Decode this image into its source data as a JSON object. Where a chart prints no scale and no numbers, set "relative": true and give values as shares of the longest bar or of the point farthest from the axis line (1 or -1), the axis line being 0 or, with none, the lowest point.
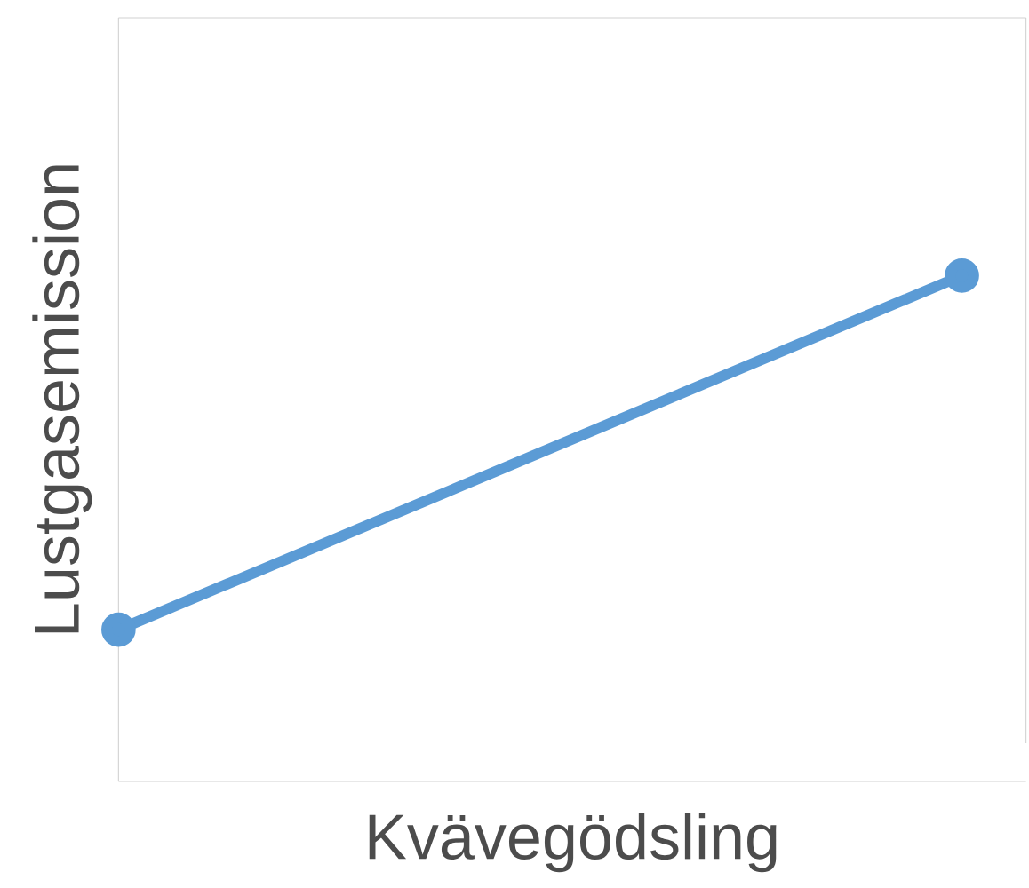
{
  "chart_data": {
    "type": "line",
    "xlabel": "Kvävegödsling",
    "ylabel": "Lustgasemission",
    "categories": [
      null,
      null
    ],
    "relative": true,
    "series": [
      {
        "color": "#5b9bd5",
        "values": [
          0.3,
          1
        ]
      }
    ],
    "marker": "circle",
    "line_style": "solid"
  }
}
